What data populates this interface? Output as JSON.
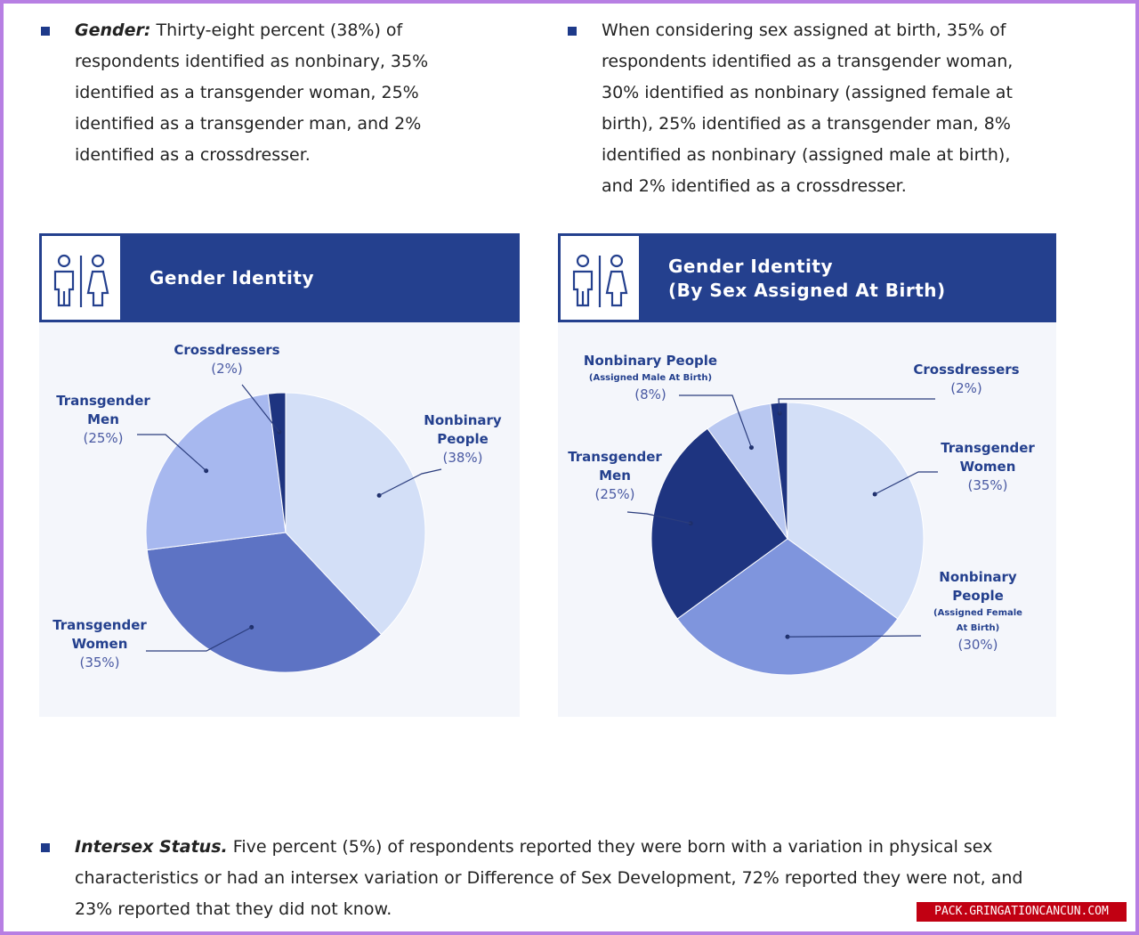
{
  "bullets": {
    "gender": {
      "lead": "Gender:",
      "text": "Thirty-eight percent (38%) of respondents identified as nonbinary, 35% identified as a transgender woman, 25% identified as a transgender man, and 2% identified as a crossdresser."
    },
    "sex_assigned": {
      "text": "When considering sex assigned at birth, 35% of respondents identified as a transgender woman, 30% identified as nonbinary (assigned female at birth), 25% identified as a transgender man, 8% identified as nonbinary (assigned male at birth), and 2% identified as a crossdresser."
    },
    "intersex": {
      "lead": "Intersex Status.",
      "text": "Five percent (5%) of respondents reported they were born with a variation in physical sex characteristics or had an intersex variation or Difference of Sex Development, 72% reported they were not, and 23% reported that they did not know."
    }
  },
  "colors": {
    "accent": "#24408e",
    "panel_bg": "#f4f6fb",
    "slice_light": "#d3dff7",
    "slice_mid": "#5d73c4",
    "slice_pale": "#a7b8ef",
    "slice_dark": "#1e3480",
    "slice_soft": "#b9c8f1"
  },
  "icons": {
    "gender_pair": "person-figures-icon"
  },
  "watermark": "PACK.GRINGATIONCANCUN.COM",
  "chart_data": [
    {
      "type": "pie",
      "title": "Gender Identity",
      "categories": [
        "Nonbinary People",
        "Transgender Women",
        "Transgender Men",
        "Crossdressers"
      ],
      "values": [
        38,
        35,
        25,
        2
      ],
      "labels": [
        {
          "lines": [
            "Nonbinary",
            "People"
          ],
          "sub": [],
          "pct": "(38%)"
        },
        {
          "lines": [
            "Transgender",
            "Women"
          ],
          "sub": [],
          "pct": "(35%)"
        },
        {
          "lines": [
            "Transgender",
            "Men"
          ],
          "sub": [],
          "pct": "(25%)"
        },
        {
          "lines": [
            "Crossdressers"
          ],
          "sub": [],
          "pct": "(2%)"
        }
      ],
      "colors": [
        "#d3dff7",
        "#5d73c4",
        "#a7b8ef",
        "#1e3480"
      ]
    },
    {
      "type": "pie",
      "title": "Gender Identity",
      "subtitle": "(By Sex Assigned At Birth)",
      "categories": [
        "Transgender Women",
        "Nonbinary People (Assigned Female At Birth)",
        "Transgender Men",
        "Nonbinary People (Assigned Male At Birth)",
        "Crossdressers"
      ],
      "values": [
        35,
        30,
        25,
        8,
        2
      ],
      "labels": [
        {
          "lines": [
            "Transgender",
            "Women"
          ],
          "sub": [],
          "pct": "(35%)"
        },
        {
          "lines": [
            "Nonbinary",
            "People"
          ],
          "sub": [
            "(Assigned Female",
            "At Birth)"
          ],
          "pct": "(30%)"
        },
        {
          "lines": [
            "Transgender",
            "Men"
          ],
          "sub": [],
          "pct": "(25%)"
        },
        {
          "lines": [
            "Nonbinary People"
          ],
          "sub": [
            "(Assigned Male At Birth)"
          ],
          "pct": "(8%)"
        },
        {
          "lines": [
            "Crossdressers"
          ],
          "sub": [],
          "pct": "(2%)"
        }
      ],
      "colors": [
        "#d3dff7",
        "#7f95dd",
        "#1e3480",
        "#b9c8f1",
        "#1e3480"
      ]
    }
  ]
}
